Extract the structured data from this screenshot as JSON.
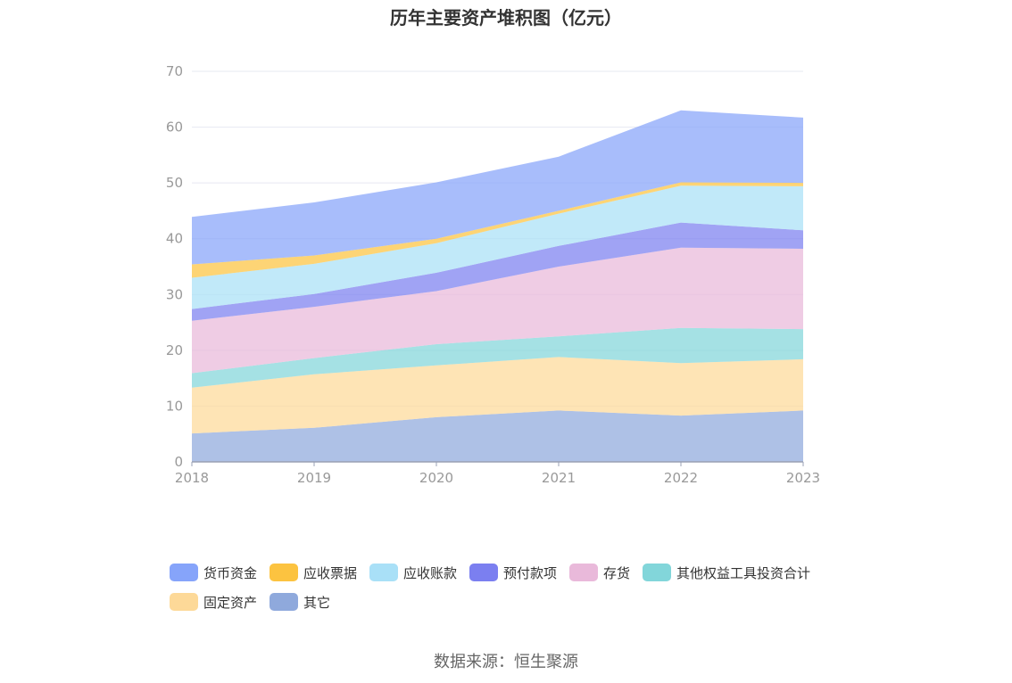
{
  "chart_data": {
    "type": "area",
    "stacked": true,
    "title": "历年主要资产堆积图（亿元）",
    "categories": [
      "2018",
      "2019",
      "2020",
      "2021",
      "2022",
      "2023"
    ],
    "ylim": [
      0,
      70
    ],
    "yticks": [
      0,
      10,
      20,
      30,
      40,
      50,
      60,
      70
    ],
    "grid": true,
    "legend_position": "bottom",
    "series": [
      {
        "name": "其它",
        "color": "#8fa9dc",
        "values": [
          5.1,
          6.1,
          8.0,
          9.2,
          8.3,
          9.2
        ]
      },
      {
        "name": "固定资产",
        "color": "#fdd998",
        "values": [
          8.2,
          9.6,
          9.3,
          9.6,
          9.4,
          9.2
        ]
      },
      {
        "name": "其他权益工具投资合计",
        "color": "#82d6da",
        "values": [
          2.6,
          2.9,
          3.8,
          3.7,
          6.3,
          5.4
        ]
      },
      {
        "name": "存货",
        "color": "#e9b9da",
        "values": [
          9.4,
          9.2,
          9.5,
          12.5,
          14.4,
          14.4
        ]
      },
      {
        "name": "预付款项",
        "color": "#7b7ff0",
        "values": [
          2.1,
          2.3,
          3.3,
          3.7,
          4.5,
          3.3
        ]
      },
      {
        "name": "应收账款",
        "color": "#a9e0f7",
        "values": [
          5.6,
          5.4,
          5.3,
          5.8,
          6.6,
          7.9
        ]
      },
      {
        "name": "应收票据",
        "color": "#fcc340",
        "values": [
          2.4,
          1.5,
          0.8,
          0.5,
          0.6,
          0.6
        ]
      },
      {
        "name": "货币资金",
        "color": "#86a4fa",
        "values": [
          8.5,
          9.5,
          10.1,
          9.7,
          12.9,
          11.7
        ]
      }
    ]
  },
  "legend_order": [
    "货币资金",
    "应收票据",
    "应收账款",
    "预付款项",
    "存货",
    "其他权益工具投资合计",
    "固定资产",
    "其它"
  ],
  "source_note": "数据来源：恒生聚源"
}
